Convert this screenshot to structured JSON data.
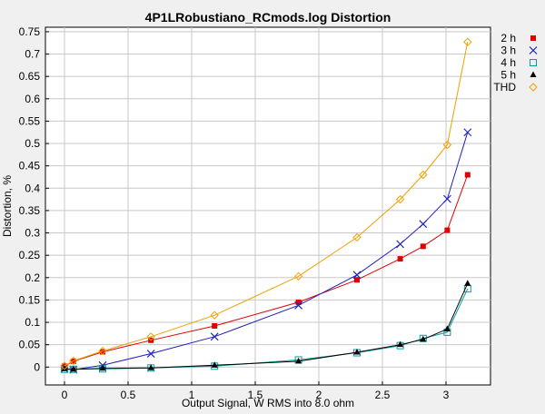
{
  "chart_data": {
    "type": "line",
    "title": "4P1LRobustiano_RCmods.log Distortion",
    "xlabel": "Output Signal, W RMS into 8.0 ohm",
    "ylabel": "Distortion, %",
    "xlim": [
      -0.15,
      3.35
    ],
    "ylim": [
      -0.04,
      0.76
    ],
    "xticks": [
      0,
      0.5,
      1,
      1.5,
      2,
      2.5,
      3
    ],
    "xtick_labels": [
      "0",
      "0.5",
      "1",
      "1.5",
      "2",
      "2.5",
      "3"
    ],
    "yticks": [
      0,
      0.05,
      0.1,
      0.15,
      0.2,
      0.25,
      0.3,
      0.35,
      0.4,
      0.45,
      0.5,
      0.55,
      0.6,
      0.65,
      0.7,
      0.75
    ],
    "ytick_labels": [
      "0",
      "0.05",
      "0.1",
      "0.15",
      "0.2",
      "0.25",
      "0.3",
      "0.35",
      "0.4",
      "0.45",
      "0.5",
      "0.55",
      "0.6",
      "0.65",
      "0.7",
      "0.75"
    ],
    "grid": true,
    "legend_position": "right",
    "series": [
      {
        "name": "2 h",
        "color": "#e00000",
        "marker": "square-filled",
        "x": [
          0,
          0.07,
          0.3,
          0.68,
          1.18,
          1.84,
          2.3,
          2.64,
          2.82,
          3.01,
          3.17
        ],
        "y": [
          0.002,
          0.013,
          0.034,
          0.06,
          0.092,
          0.145,
          0.195,
          0.242,
          0.27,
          0.306,
          0.43
        ]
      },
      {
        "name": "3 h",
        "color": "#2020c0",
        "marker": "x",
        "x": [
          0,
          0.07,
          0.3,
          0.68,
          1.18,
          1.84,
          2.3,
          2.64,
          2.82,
          3.01,
          3.17
        ],
        "y": [
          -0.004,
          -0.006,
          0.004,
          0.03,
          0.068,
          0.138,
          0.206,
          0.275,
          0.32,
          0.376,
          0.525
        ]
      },
      {
        "name": "4 h",
        "color": "#00a0a0",
        "marker": "square-open",
        "x": [
          0,
          0.07,
          0.3,
          0.68,
          1.18,
          1.84,
          2.3,
          2.64,
          2.82,
          3.01,
          3.17
        ],
        "y": [
          -0.005,
          -0.005,
          -0.004,
          -0.002,
          0.002,
          0.016,
          0.032,
          0.048,
          0.064,
          0.078,
          0.175
        ]
      },
      {
        "name": "5 h",
        "color": "#000000",
        "marker": "triangle-filled",
        "x": [
          0,
          0.07,
          0.3,
          0.68,
          1.18,
          1.84,
          2.3,
          2.64,
          2.82,
          3.01,
          3.17
        ],
        "y": [
          -0.004,
          -0.005,
          -0.003,
          -0.002,
          0.004,
          0.013,
          0.033,
          0.05,
          0.062,
          0.085,
          0.187
        ]
      },
      {
        "name": "THD",
        "color": "#f0a000",
        "marker": "diamond-open",
        "x": [
          0,
          0.07,
          0.3,
          0.68,
          1.18,
          1.84,
          2.3,
          2.64,
          2.82,
          3.01,
          3.17
        ],
        "y": [
          0.003,
          0.014,
          0.036,
          0.068,
          0.116,
          0.203,
          0.29,
          0.375,
          0.43,
          0.497,
          0.727
        ]
      }
    ]
  }
}
